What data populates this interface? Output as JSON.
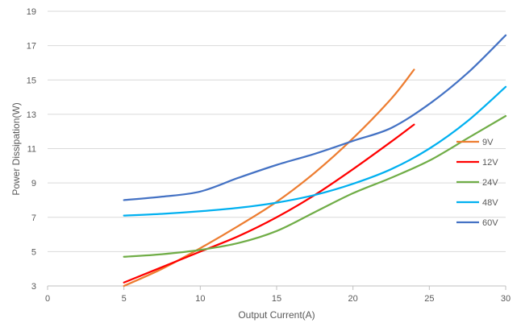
{
  "chart_data": {
    "type": "line",
    "title": "",
    "xlabel": "Output Current(A)",
    "ylabel": "Power Dissipation(W)",
    "xlim": [
      0,
      30
    ],
    "ylim": [
      3,
      19
    ],
    "xticks": [
      0,
      5,
      10,
      15,
      20,
      25,
      30
    ],
    "yticks": [
      3,
      5,
      7,
      9,
      11,
      13,
      15,
      17,
      19
    ],
    "grid": "horizontal",
    "legend_position": "right",
    "series": [
      {
        "name": "9V",
        "color": "#ED7D31",
        "x": [
          5,
          7.5,
          10,
          12.5,
          15,
          17.5,
          20,
          22.5,
          24
        ],
        "y": [
          3.0,
          4.0,
          5.2,
          6.5,
          7.9,
          9.6,
          11.6,
          13.9,
          15.6
        ]
      },
      {
        "name": "12V",
        "color": "#FF0000",
        "x": [
          5,
          7.5,
          10,
          12.5,
          15,
          17.5,
          20,
          22.5,
          24
        ],
        "y": [
          3.2,
          4.1,
          5.0,
          5.9,
          7.0,
          8.3,
          9.8,
          11.4,
          12.4
        ]
      },
      {
        "name": "24V",
        "color": "#70AD47",
        "x": [
          5,
          7.5,
          10,
          12.5,
          15,
          17.5,
          20,
          22.5,
          25,
          27.5,
          30
        ],
        "y": [
          4.7,
          4.85,
          5.1,
          5.5,
          6.2,
          7.3,
          8.4,
          9.3,
          10.3,
          11.6,
          12.9
        ]
      },
      {
        "name": "48V",
        "color": "#00B0F0",
        "x": [
          5,
          7.5,
          10,
          12.5,
          15,
          17.5,
          20,
          22.5,
          25,
          27.5,
          30
        ],
        "y": [
          7.1,
          7.2,
          7.35,
          7.55,
          7.85,
          8.3,
          8.95,
          9.8,
          11.0,
          12.6,
          14.6
        ]
      },
      {
        "name": "60V",
        "color": "#4472C4",
        "x": [
          5,
          7.5,
          10,
          12.5,
          15,
          17.5,
          20,
          22.5,
          25,
          27.5,
          30
        ],
        "y": [
          8.0,
          8.2,
          8.5,
          9.3,
          10.05,
          10.7,
          11.45,
          12.2,
          13.6,
          15.4,
          17.6
        ]
      }
    ]
  }
}
